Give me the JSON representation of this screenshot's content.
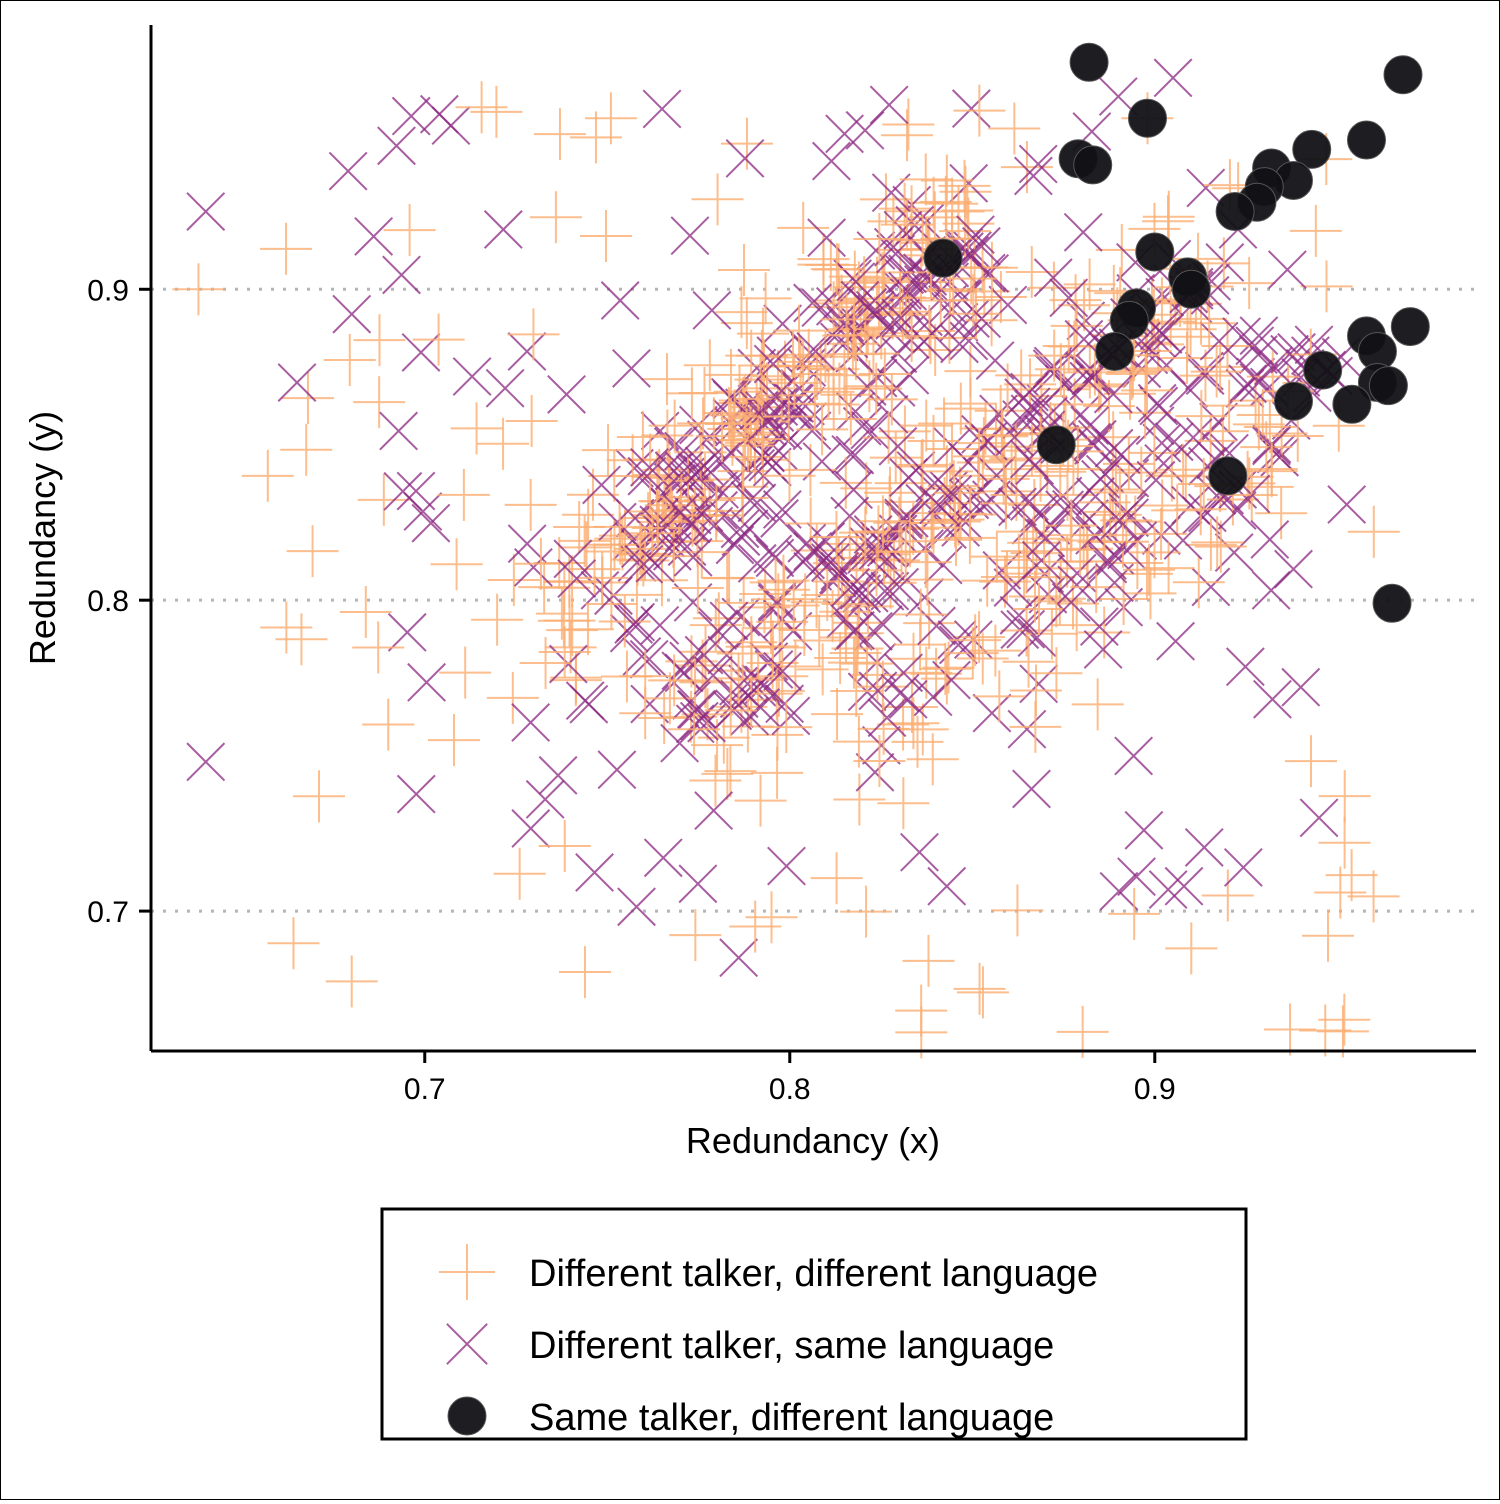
{
  "chart_data": {
    "type": "scatter",
    "title": "",
    "xlabel": "Redundancy (x)",
    "ylabel": "Redundancy (y)",
    "xlim": [
      0.625,
      0.988
    ],
    "ylim": [
      0.655,
      0.985
    ],
    "x_ticks": [
      {
        "value": 0.7,
        "label": "0.7"
      },
      {
        "value": 0.8,
        "label": "0.8"
      },
      {
        "value": 0.9,
        "label": "0.9"
      }
    ],
    "y_ticks": [
      {
        "value": 0.7,
        "label": "0.7"
      },
      {
        "value": 0.8,
        "label": "0.8"
      },
      {
        "value": 0.9,
        "label": "0.9"
      }
    ],
    "y_gridlines": [
      0.7,
      0.8,
      0.9
    ],
    "grid": "horizontal dotted",
    "legend_position": "bottom",
    "colors": {
      "different_language": "#fcae73",
      "same_language": "#8b2882",
      "same_talker": "#111116",
      "grid": "#b5b5b5"
    },
    "series": [
      {
        "name": "Different talker, different language",
        "marker": "plus",
        "clusters": [
          {
            "x0": 0.735,
            "y0": 0.8,
            "x1": 0.85,
            "y1": 0.92,
            "spread": 0.013,
            "count": 220
          },
          {
            "x0": 0.77,
            "y0": 0.76,
            "x1": 0.91,
            "y1": 0.9,
            "spread": 0.013,
            "count": 200
          },
          {
            "x0": 0.82,
            "y0": 0.76,
            "x1": 0.93,
            "y1": 0.86,
            "spread": 0.016,
            "count": 120
          },
          {
            "x0": 0.66,
            "y0": 0.66,
            "x1": 0.96,
            "y1": 0.96,
            "spread": 0.0,
            "count": 110
          }
        ],
        "points": [
          {
            "x": 0.751,
            "y": 0.955
          },
          {
            "x": 0.638,
            "y": 0.9
          },
          {
            "x": 0.662,
            "y": 0.913
          },
          {
            "x": 0.657,
            "y": 0.84
          },
          {
            "x": 0.668,
            "y": 0.865
          },
          {
            "x": 0.726,
            "y": 0.712
          },
          {
            "x": 0.69,
            "y": 0.76
          },
          {
            "x": 0.708,
            "y": 0.755
          },
          {
            "x": 0.838,
            "y": 0.684
          },
          {
            "x": 0.836,
            "y": 0.668
          },
          {
            "x": 0.852,
            "y": 0.675
          },
          {
            "x": 0.91,
            "y": 0.688
          },
          {
            "x": 0.92,
            "y": 0.705
          },
          {
            "x": 0.952,
            "y": 0.722
          },
          {
            "x": 0.96,
            "y": 0.822
          },
          {
            "x": 0.898,
            "y": 0.955
          },
          {
            "x": 0.795,
            "y": 0.698
          }
        ]
      },
      {
        "name": "Different talker, same language",
        "marker": "cross",
        "clusters": [
          {
            "x0": 0.745,
            "y0": 0.8,
            "x1": 0.845,
            "y1": 0.91,
            "spread": 0.013,
            "count": 160
          },
          {
            "x0": 0.77,
            "y0": 0.76,
            "x1": 0.92,
            "y1": 0.91,
            "spread": 0.012,
            "count": 160
          },
          {
            "x0": 0.83,
            "y0": 0.77,
            "x1": 0.94,
            "y1": 0.87,
            "spread": 0.016,
            "count": 100
          },
          {
            "x0": 0.69,
            "y0": 0.7,
            "x1": 0.95,
            "y1": 0.96,
            "spread": 0.0,
            "count": 90
          }
        ],
        "points": [
          {
            "x": 0.64,
            "y": 0.925
          },
          {
            "x": 0.679,
            "y": 0.938
          },
          {
            "x": 0.68,
            "y": 0.892
          },
          {
            "x": 0.686,
            "y": 0.917
          },
          {
            "x": 0.665,
            "y": 0.87
          },
          {
            "x": 0.64,
            "y": 0.748
          },
          {
            "x": 0.786,
            "y": 0.685
          },
          {
            "x": 0.843,
            "y": 0.708
          },
          {
            "x": 0.908,
            "y": 0.708
          },
          {
            "x": 0.945,
            "y": 0.73
          },
          {
            "x": 0.94,
            "y": 0.772
          },
          {
            "x": 0.938,
            "y": 0.81
          },
          {
            "x": 0.905,
            "y": 0.968
          },
          {
            "x": 0.89,
            "y": 0.962
          },
          {
            "x": 0.765,
            "y": 0.958
          },
          {
            "x": 0.815,
            "y": 0.95
          },
          {
            "x": 0.694,
            "y": 0.835
          },
          {
            "x": 0.728,
            "y": 0.88
          }
        ]
      },
      {
        "name": "Same talker, different language",
        "marker": "circle",
        "points": [
          {
            "x": 0.882,
            "y": 0.973
          },
          {
            "x": 0.898,
            "y": 0.955
          },
          {
            "x": 0.879,
            "y": 0.942
          },
          {
            "x": 0.883,
            "y": 0.94
          },
          {
            "x": 0.968,
            "y": 0.969
          },
          {
            "x": 0.958,
            "y": 0.948
          },
          {
            "x": 0.943,
            "y": 0.945
          },
          {
            "x": 0.932,
            "y": 0.939
          },
          {
            "x": 0.938,
            "y": 0.935
          },
          {
            "x": 0.93,
            "y": 0.933
          },
          {
            "x": 0.928,
            "y": 0.928
          },
          {
            "x": 0.922,
            "y": 0.925
          },
          {
            "x": 0.842,
            "y": 0.91
          },
          {
            "x": 0.9,
            "y": 0.912
          },
          {
            "x": 0.909,
            "y": 0.904
          },
          {
            "x": 0.91,
            "y": 0.9
          },
          {
            "x": 0.895,
            "y": 0.894
          },
          {
            "x": 0.893,
            "y": 0.89
          },
          {
            "x": 0.889,
            "y": 0.88
          },
          {
            "x": 0.97,
            "y": 0.888
          },
          {
            "x": 0.958,
            "y": 0.885
          },
          {
            "x": 0.961,
            "y": 0.88
          },
          {
            "x": 0.946,
            "y": 0.874
          },
          {
            "x": 0.961,
            "y": 0.87
          },
          {
            "x": 0.964,
            "y": 0.869
          },
          {
            "x": 0.938,
            "y": 0.864
          },
          {
            "x": 0.954,
            "y": 0.863
          },
          {
            "x": 0.873,
            "y": 0.85
          },
          {
            "x": 0.92,
            "y": 0.84
          },
          {
            "x": 0.965,
            "y": 0.799
          }
        ]
      }
    ]
  }
}
